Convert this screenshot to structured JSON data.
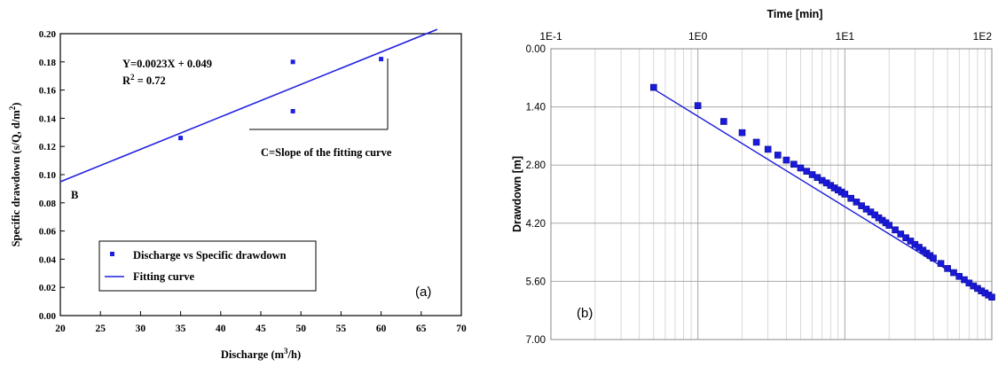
{
  "chart_data": [
    {
      "type": "scatter",
      "panel_label": "(a)",
      "xlabel": "Discharge (m³/h)",
      "ylabel": "Specific drawdown (s/Q, d/m²)",
      "xlim": [
        20,
        70
      ],
      "ylim": [
        0.0,
        0.2
      ],
      "x_ticks": [
        20,
        25,
        30,
        35,
        40,
        45,
        50,
        55,
        60,
        65,
        70
      ],
      "x_tick_labels": [
        "20",
        "25",
        "30",
        "35",
        "40",
        "45",
        "50",
        "55",
        "60",
        "65",
        "70"
      ],
      "y_ticks": [
        0,
        0.02,
        0.04,
        0.06,
        0.08,
        0.1,
        0.12,
        0.14,
        0.16,
        0.18,
        0.2
      ],
      "y_tick_labels": [
        "0.00",
        "0.02",
        "0.04",
        "0.06",
        "0.08",
        "0.10",
        "0.12",
        "0.14",
        "0.16",
        "0.18",
        "0.20"
      ],
      "grid": false,
      "series": [
        {
          "name": "Discharge vs Specific drawdown",
          "type": "scatter",
          "x": [
            35,
            49,
            49,
            60
          ],
          "y": [
            0.126,
            0.145,
            0.18,
            0.182
          ]
        },
        {
          "name": "Fitting curve",
          "type": "line",
          "slope": 0.0023,
          "intercept": 0.049,
          "x_range": [
            20,
            67
          ]
        }
      ],
      "annotations": {
        "equation": "Y=0.0023X + 0.049",
        "r2": "R² = 0.72",
        "slope_note": "C=Slope of the fitting curve",
        "intercept_label": "B"
      },
      "legend_position": "bottom-left",
      "colors": {
        "series": "#1f1fe0",
        "axis": "#000000"
      }
    },
    {
      "type": "scatter",
      "panel_label": "(b)",
      "title": "Time [min]",
      "ylabel": "Drawdown [m]",
      "x_scale": "log",
      "xlim": [
        0.1,
        100
      ],
      "x_tick_labels": [
        "1E-1",
        "1E0",
        "1E1",
        "1E2"
      ],
      "ylim": [
        0.0,
        7.0
      ],
      "y_inverted": true,
      "y_ticks": [
        0,
        1.4,
        2.8,
        4.2,
        5.6,
        7.0
      ],
      "y_tick_labels": [
        "0.00",
        "1.40",
        "2.80",
        "4.20",
        "5.60",
        "7.00"
      ],
      "grid": true,
      "series": [
        {
          "type": "scatter",
          "x": [
            0.5,
            1,
            1.5,
            2,
            2.5,
            3,
            3.5,
            4,
            4.5,
            5,
            5.5,
            6,
            6.5,
            7,
            7.5,
            8,
            8.5,
            9,
            9.5,
            10,
            11,
            12,
            13,
            14,
            15,
            16,
            17,
            18,
            19,
            20,
            22,
            24,
            26,
            28,
            30,
            32,
            34,
            36,
            38,
            40,
            45,
            50,
            55,
            60,
            65,
            70,
            75,
            80,
            85,
            90,
            95,
            100
          ],
          "y": [
            0.93,
            1.37,
            1.75,
            2.02,
            2.25,
            2.42,
            2.56,
            2.68,
            2.78,
            2.87,
            2.95,
            3.03,
            3.1,
            3.17,
            3.23,
            3.29,
            3.35,
            3.4,
            3.45,
            3.5,
            3.6,
            3.69,
            3.78,
            3.86,
            3.93,
            4.0,
            4.07,
            4.13,
            4.19,
            4.25,
            4.36,
            4.46,
            4.55,
            4.63,
            4.71,
            4.78,
            4.85,
            4.92,
            4.98,
            5.04,
            5.17,
            5.29,
            5.39,
            5.48,
            5.56,
            5.64,
            5.71,
            5.77,
            5.83,
            5.88,
            5.93,
            5.98
          ]
        },
        {
          "type": "line",
          "x": [
            0.5,
            100
          ],
          "y": [
            0.97,
            5.98
          ]
        }
      ],
      "colors": {
        "series": "#1a1adb",
        "grid": "#c8c8c8"
      }
    }
  ]
}
